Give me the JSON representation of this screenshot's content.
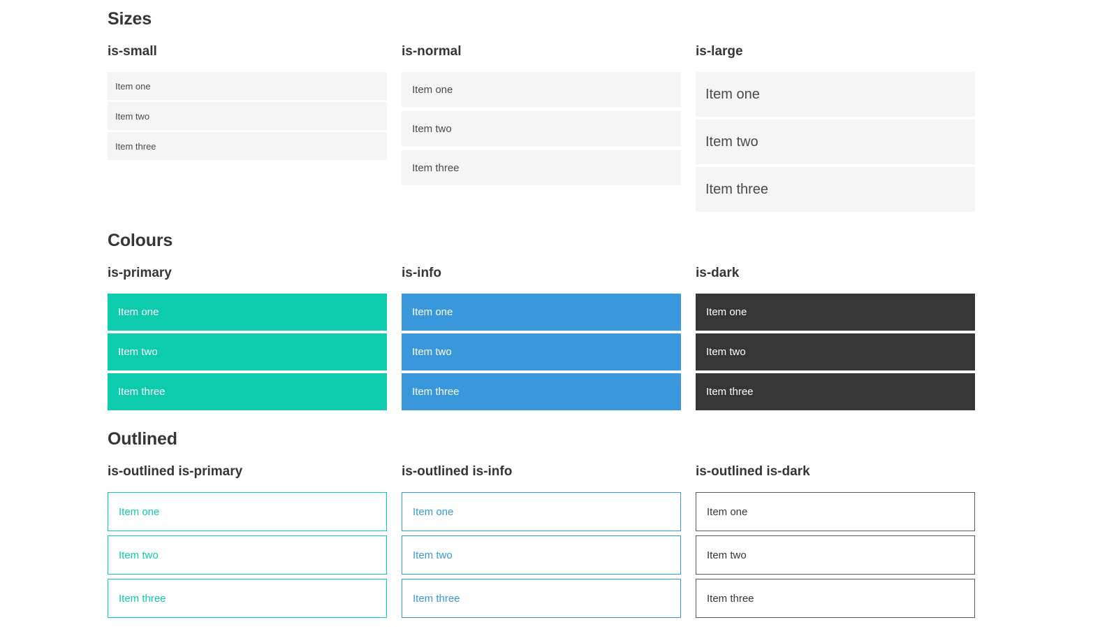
{
  "colors": {
    "primary": "#0dccae",
    "info": "#3898db",
    "dark": "#363636",
    "item_bg": "#f5f5f5",
    "item_text": "#4a4a4a",
    "heading_text": "#363636",
    "outlined_dark_border": "#585858"
  },
  "sections": [
    {
      "title": "Sizes",
      "groups": [
        {
          "title": "is-small",
          "items": [
            "Item one",
            "Item two",
            "Item three"
          ]
        },
        {
          "title": "is-normal",
          "items": [
            "Item one",
            "Item two",
            "Item three"
          ]
        },
        {
          "title": "is-large",
          "items": [
            "Item one",
            "Item two",
            "Item three"
          ]
        }
      ]
    },
    {
      "title": "Colours",
      "groups": [
        {
          "title": "is-primary",
          "items": [
            "Item one",
            "Item two",
            "Item three"
          ]
        },
        {
          "title": "is-info",
          "items": [
            "Item one",
            "Item two",
            "Item three"
          ]
        },
        {
          "title": "is-dark",
          "items": [
            "Item one",
            "Item two",
            "Item three"
          ]
        }
      ]
    },
    {
      "title": "Outlined",
      "groups": [
        {
          "title": "is-outlined is-primary",
          "items": [
            "Item one",
            "Item two",
            "Item three"
          ]
        },
        {
          "title": "is-outlined is-info",
          "items": [
            "Item one",
            "Item two",
            "Item three"
          ]
        },
        {
          "title": "is-outlined is-dark",
          "items": [
            "Item one",
            "Item two",
            "Item three"
          ]
        }
      ]
    }
  ]
}
